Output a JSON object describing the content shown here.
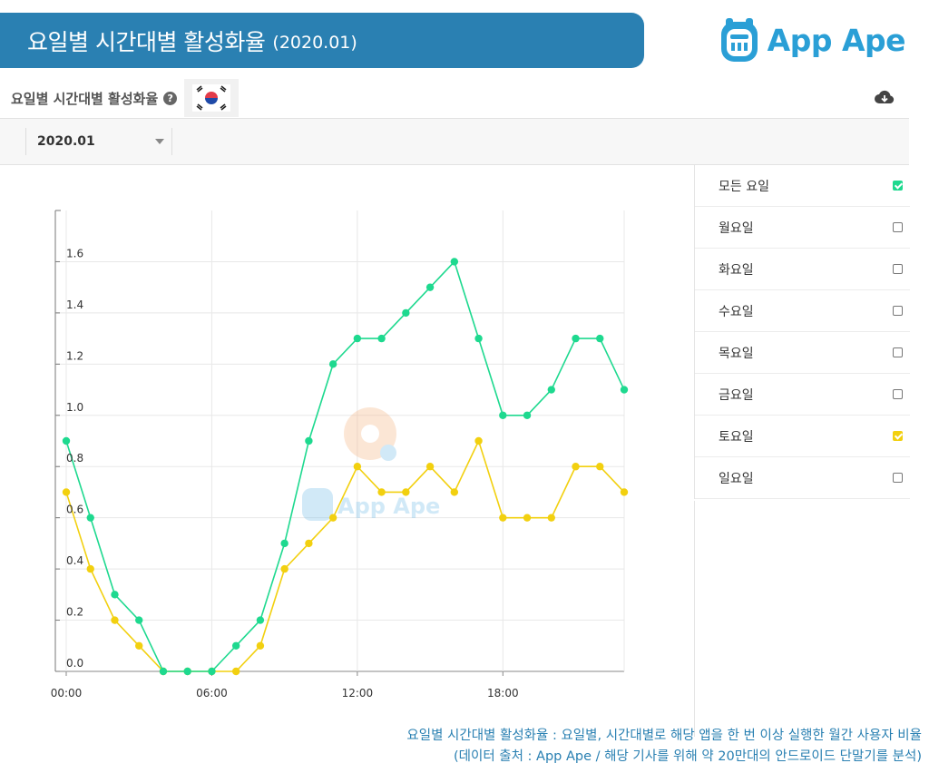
{
  "header": {
    "title": "요일별 시간대별 활성화율",
    "subtitle": "(2020.01)"
  },
  "logo": {
    "text": "App Ape"
  },
  "toolbar": {
    "label": "요일별 시간대별 활성화율",
    "help_icon": "question-circle-icon",
    "flag_icon": "korea-flag-icon",
    "download_icon": "cloud-download-icon"
  },
  "filter": {
    "month": "2020.01"
  },
  "legend": {
    "items": [
      {
        "label": "모든 요일",
        "checked": true,
        "color": "#1ed98f"
      },
      {
        "label": "월요일",
        "checked": false
      },
      {
        "label": "화요일",
        "checked": false
      },
      {
        "label": "수요일",
        "checked": false
      },
      {
        "label": "목요일",
        "checked": false
      },
      {
        "label": "금요일",
        "checked": false
      },
      {
        "label": "토요일",
        "checked": true,
        "color": "#f2d00f"
      },
      {
        "label": "일요일",
        "checked": false
      }
    ]
  },
  "watermark": {
    "text": "App Ape"
  },
  "chart_data": {
    "type": "line",
    "x": [
      0,
      1,
      2,
      3,
      4,
      5,
      6,
      7,
      8,
      9,
      10,
      11,
      12,
      13,
      14,
      15,
      16,
      17,
      18,
      19,
      20,
      21,
      22,
      23
    ],
    "x_ticks": [
      {
        "x": 0,
        "label": "00:00"
      },
      {
        "x": 6,
        "label": "06:00"
      },
      {
        "x": 12,
        "label": "12:00"
      },
      {
        "x": 18,
        "label": "18:00"
      }
    ],
    "y_ticks": [
      {
        "y": 0.0,
        "label": "0.0"
      },
      {
        "y": 0.2,
        "label": "0.2"
      },
      {
        "y": 0.4,
        "label": "0.4"
      },
      {
        "y": 0.6,
        "label": "0.6"
      },
      {
        "y": 0.8,
        "label": "0.8"
      },
      {
        "y": 1.0,
        "label": "1.0"
      },
      {
        "y": 1.2,
        "label": "1.2"
      },
      {
        "y": 1.4,
        "label": "1.4"
      },
      {
        "y": 1.6,
        "label": "1.6"
      }
    ],
    "ylim": [
      0,
      1.8
    ],
    "xlim": [
      0,
      23
    ],
    "grid": true,
    "series": [
      {
        "name": "모든 요일",
        "color": "#1ed98f",
        "values": [
          0.9,
          0.6,
          0.3,
          0.2,
          0,
          0,
          0,
          0.1,
          0.2,
          0.5,
          0.9,
          1.2,
          1.3,
          1.3,
          1.4,
          1.5,
          1.6,
          1.3,
          1.0,
          1.0,
          1.1,
          1.3,
          1.3,
          1.1
        ]
      },
      {
        "name": "토요일",
        "color": "#f2d00f",
        "values": [
          0.7,
          0.4,
          0.2,
          0.1,
          0,
          0,
          0,
          0,
          0.1,
          0.4,
          0.5,
          0.6,
          0.8,
          0.7,
          0.7,
          0.8,
          0.7,
          0.9,
          0.6,
          0.6,
          0.6,
          0.8,
          0.8,
          0.7
        ]
      }
    ]
  },
  "footnote": {
    "line1": "요일별 시간대별 활성화율 : 요일별, 시간대별로 해당 앱을 한 번 이상 실행한 월간 사용자 비율",
    "line2": "(데이터 출처 : App Ape / 해당 기사를 위해 약 20만대의 안드로이드 단말기를 분석)"
  }
}
